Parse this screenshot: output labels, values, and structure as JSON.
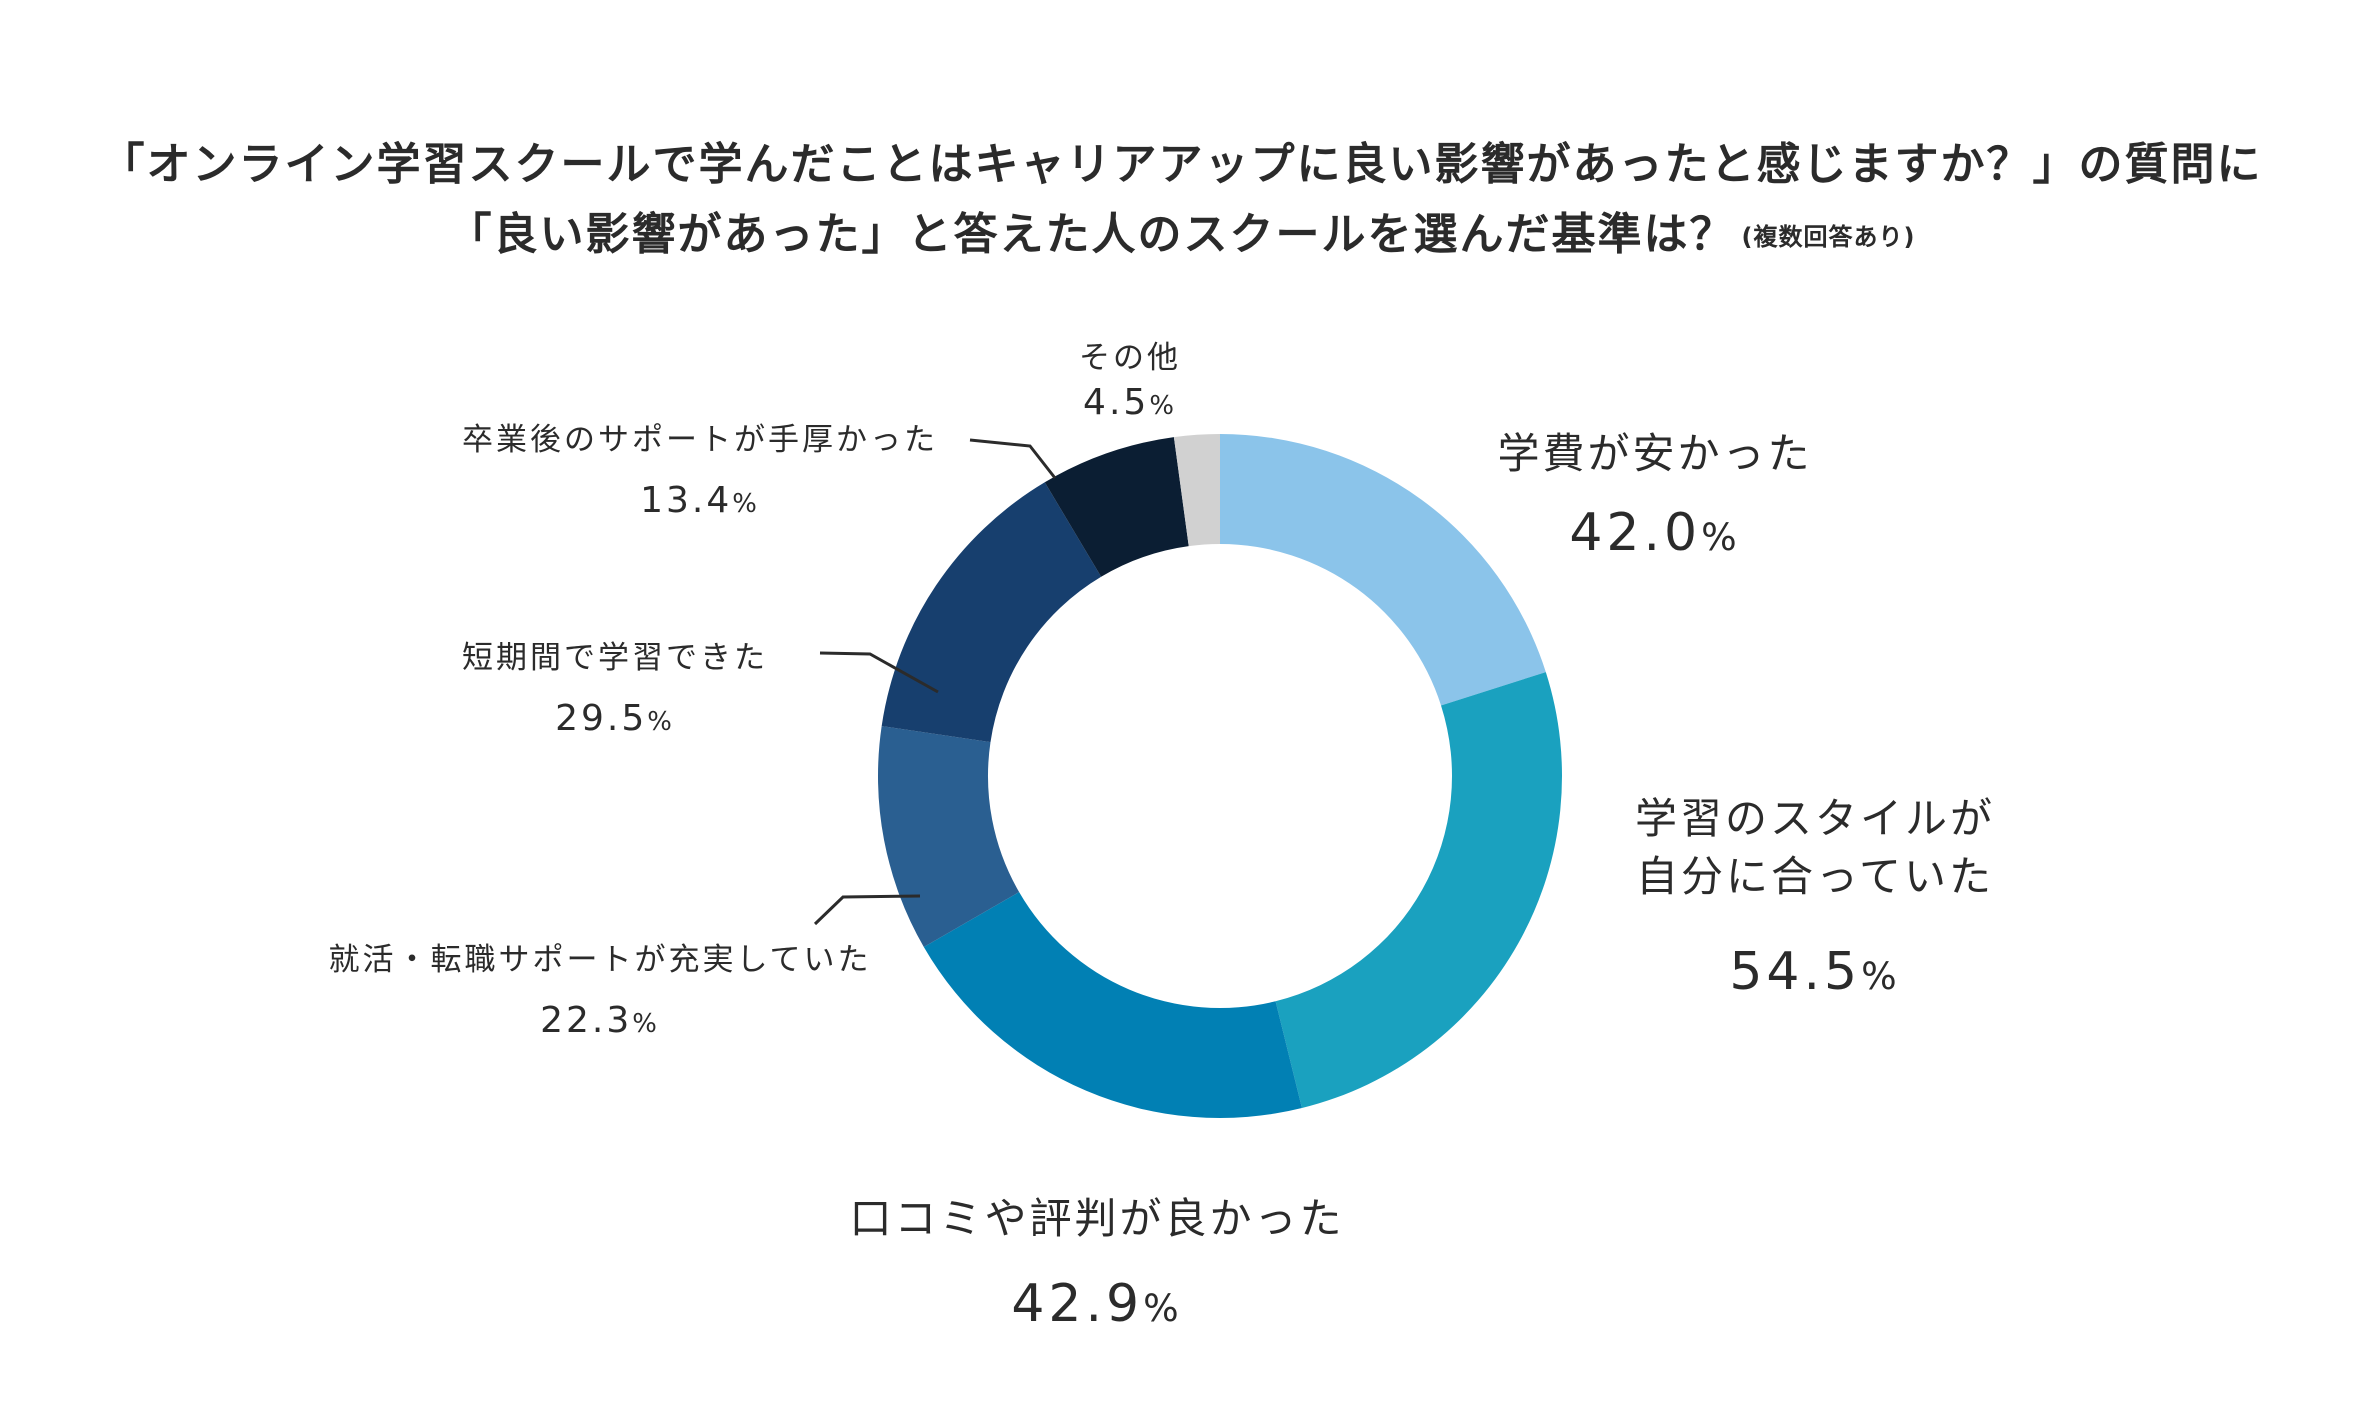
{
  "title": {
    "line1": "「オンライン学習スクールで学んだことはキャリアアップに良い影響があったと感じますか？」の質問に",
    "line2": "「良い影響があった」と答えた人のスクールを選んだ基準は？",
    "note": "(複数回答あり)"
  },
  "chart_data": {
    "type": "pie",
    "title": "「オンライン学習スクールで学んだことはキャリアアップに良い影響があったと感じますか？」の質問に「良い影響があった」と答えた人のスクールを選んだ基準は？",
    "note": "(複数回答あり)",
    "donut": true,
    "categories": [
      "学費が安かった",
      "学習のスタイルが自分に合っていた",
      "口コミや評判が良かった",
      "就活・転職サポートが充実していた",
      "短期間で学習できた",
      "卒業後のサポートが手厚かった",
      "その他"
    ],
    "values": [
      42.0,
      54.5,
      42.9,
      22.3,
      29.5,
      13.4,
      4.5
    ],
    "unit": "%",
    "colors": [
      "#8bc4ea",
      "#1aa1bf",
      "#0180b4",
      "#2a5f91",
      "#173f6e",
      "#0b1e33",
      "#d1d1d1"
    ]
  },
  "labels": {
    "fee": {
      "name": "学費が安かった",
      "value": "42.0"
    },
    "style": {
      "name1": "学習のスタイルが",
      "name2": "自分に合っていた",
      "value": "54.5"
    },
    "review": {
      "name": "口コミや評判が良かった",
      "value": "42.9"
    },
    "career": {
      "name": "就活・転職サポートが充実していた",
      "value": "22.3"
    },
    "short": {
      "name": "短期間で学習できた",
      "value": "29.5"
    },
    "after": {
      "name": "卒業後のサポートが手厚かった",
      "value": "13.4"
    },
    "other": {
      "name": "その他",
      "value": "4.5"
    },
    "percent_sign": "%"
  }
}
